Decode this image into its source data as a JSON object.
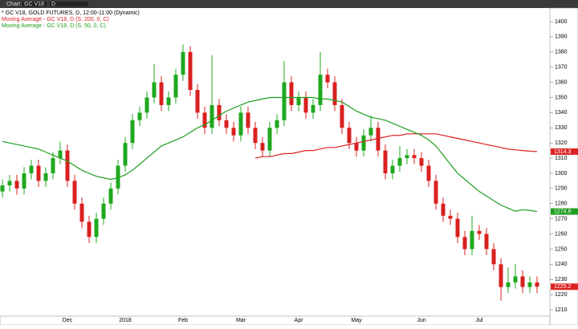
{
  "toolbar": {
    "items": [
      "Chart",
      "GC V18",
      "D"
    ]
  },
  "chart_data": {
    "type": "candlestick",
    "title": "* GC V18, GOLD FUTURES, D, 12:00-11:00 (Dynamic)",
    "categories": [
      null,
      null,
      null,
      null,
      null,
      null,
      null,
      null,
      null,
      "Dec",
      null,
      null,
      null,
      null,
      null,
      null,
      null,
      "2018",
      null,
      null,
      null,
      null,
      null,
      null,
      null,
      "Feb",
      null,
      null,
      null,
      null,
      null,
      null,
      null,
      "Mar",
      null,
      null,
      null,
      null,
      null,
      null,
      null,
      "Apr",
      null,
      null,
      null,
      null,
      null,
      null,
      null,
      "May",
      null,
      null,
      null,
      null,
      null,
      null,
      null,
      null,
      "Jun",
      null,
      null,
      null,
      null,
      null,
      null,
      null,
      "Jul",
      null,
      null,
      null,
      null,
      null,
      null,
      null,
      null
    ],
    "ohlc": [
      [
        1288,
        1296,
        1284,
        1292
      ],
      [
        1292,
        1299,
        1288,
        1295
      ],
      [
        1295,
        1299,
        1286,
        1290
      ],
      [
        1290,
        1304,
        1286,
        1300
      ],
      [
        1300,
        1309,
        1296,
        1305
      ],
      [
        1305,
        1309,
        1291,
        1295
      ],
      [
        1295,
        1304,
        1291,
        1300
      ],
      [
        1300,
        1314,
        1296,
        1310
      ],
      [
        1310,
        1321,
        1306,
        1315
      ],
      [
        1315,
        1319,
        1291,
        1295
      ],
      [
        1295,
        1299,
        1276,
        1280
      ],
      [
        1280,
        1284,
        1264,
        1268
      ],
      [
        1268,
        1272,
        1254,
        1258
      ],
      [
        1258,
        1274,
        1254,
        1270
      ],
      [
        1270,
        1284,
        1266,
        1280
      ],
      [
        1280,
        1294,
        1276,
        1290
      ],
      [
        1290,
        1309,
        1286,
        1305
      ],
      [
        1305,
        1324,
        1301,
        1320
      ],
      [
        1320,
        1339,
        1316,
        1335
      ],
      [
        1335,
        1344,
        1331,
        1340
      ],
      [
        1340,
        1354,
        1336,
        1350
      ],
      [
        1350,
        1372,
        1346,
        1360
      ],
      [
        1360,
        1364,
        1341,
        1345
      ],
      [
        1345,
        1354,
        1341,
        1350
      ],
      [
        1350,
        1369,
        1346,
        1365
      ],
      [
        1365,
        1385,
        1361,
        1380
      ],
      [
        1380,
        1384,
        1351,
        1355
      ],
      [
        1355,
        1359,
        1336,
        1340
      ],
      [
        1340,
        1344,
        1326,
        1330
      ],
      [
        1330,
        1378,
        1326,
        1345
      ],
      [
        1345,
        1349,
        1331,
        1335
      ],
      [
        1335,
        1339,
        1326,
        1330
      ],
      [
        1330,
        1334,
        1321,
        1325
      ],
      [
        1325,
        1344,
        1321,
        1340
      ],
      [
        1340,
        1344,
        1326,
        1330
      ],
      [
        1330,
        1334,
        1316,
        1320
      ],
      [
        1320,
        1324,
        1311,
        1315
      ],
      [
        1315,
        1334,
        1311,
        1330
      ],
      [
        1330,
        1339,
        1326,
        1335
      ],
      [
        1335,
        1374,
        1331,
        1360
      ],
      [
        1360,
        1364,
        1341,
        1345
      ],
      [
        1345,
        1354,
        1341,
        1350
      ],
      [
        1350,
        1354,
        1336,
        1340
      ],
      [
        1340,
        1349,
        1336,
        1345
      ],
      [
        1345,
        1380,
        1341,
        1365
      ],
      [
        1365,
        1369,
        1356,
        1360
      ],
      [
        1360,
        1364,
        1341,
        1345
      ],
      [
        1345,
        1349,
        1326,
        1330
      ],
      [
        1330,
        1334,
        1316,
        1320
      ],
      [
        1320,
        1324,
        1311,
        1315
      ],
      [
        1315,
        1329,
        1311,
        1325
      ],
      [
        1325,
        1338,
        1321,
        1330
      ],
      [
        1330,
        1334,
        1311,
        1315
      ],
      [
        1315,
        1319,
        1296,
        1300
      ],
      [
        1300,
        1309,
        1296,
        1305
      ],
      [
        1305,
        1318,
        1301,
        1310
      ],
      [
        1310,
        1316,
        1306,
        1312
      ],
      [
        1312,
        1316,
        1306,
        1310
      ],
      [
        1310,
        1314,
        1301,
        1305
      ],
      [
        1305,
        1309,
        1291,
        1295
      ],
      [
        1295,
        1299,
        1276,
        1280
      ],
      [
        1280,
        1284,
        1268,
        1272
      ],
      [
        1272,
        1276,
        1266,
        1270
      ],
      [
        1270,
        1274,
        1254,
        1258
      ],
      [
        1258,
        1262,
        1246,
        1250
      ],
      [
        1250,
        1272,
        1246,
        1262
      ],
      [
        1262,
        1266,
        1256,
        1260
      ],
      [
        1260,
        1264,
        1246,
        1250
      ],
      [
        1250,
        1254,
        1236,
        1240
      ],
      [
        1240,
        1244,
        1216,
        1225
      ],
      [
        1225,
        1238,
        1221,
        1228
      ],
      [
        1228,
        1240,
        1224,
        1232
      ],
      [
        1232,
        1236,
        1221,
        1225
      ],
      [
        1225,
        1232,
        1221,
        1228
      ],
      [
        1228,
        1232,
        1221,
        1225.2
      ]
    ],
    "up_color": "#1fa81f",
    "down_color": "#d92020",
    "series": [
      {
        "name": "Moving Average - GC V18, D (S, 200, 0, C)",
        "color": "#dd2222",
        "values": [
          null,
          null,
          null,
          null,
          null,
          null,
          null,
          null,
          null,
          null,
          null,
          null,
          null,
          null,
          null,
          null,
          null,
          null,
          null,
          null,
          null,
          null,
          null,
          null,
          null,
          null,
          null,
          null,
          null,
          null,
          null,
          null,
          null,
          null,
          null,
          1310,
          1311,
          1311,
          1312,
          1313,
          1313,
          1314,
          1315,
          1315,
          1316,
          1317,
          1317,
          1318,
          1319,
          1320,
          1321,
          1322,
          1323,
          1324,
          1325,
          1325,
          1326,
          1326,
          1326,
          1326,
          1326,
          1325,
          1324,
          1323,
          1322,
          1321,
          1320,
          1319,
          1318,
          1317,
          1316,
          1315.5,
          1315,
          1314.6,
          1314.3
        ]
      },
      {
        "name": "Moving Average - GC V18, D (S, 50, 0, C)",
        "color": "#1f9e1f",
        "values": [
          1321,
          1320,
          1319,
          1318,
          1317,
          1316,
          1314,
          1312,
          1310,
          1308,
          1305,
          1302,
          1300,
          1298,
          1297,
          1296,
          1297,
          1299,
          1302,
          1306,
          1310,
          1314,
          1318,
          1320,
          1322,
          1324,
          1327,
          1330,
          1332,
          1335,
          1338,
          1341,
          1343,
          1345,
          1347,
          1348,
          1349,
          1350,
          1350,
          1350,
          1350,
          1350,
          1350,
          1350,
          1349,
          1349,
          1348,
          1347,
          1344,
          1341,
          1339,
          1337,
          1336,
          1335,
          1333,
          1331,
          1329,
          1327,
          1325,
          1322,
          1318,
          1312,
          1306,
          1300,
          1296,
          1292,
          1288,
          1285,
          1282,
          1279,
          1277,
          1275,
          1276,
          1275.5,
          1274.8
        ]
      }
    ],
    "price_markers": [
      {
        "value": 1314.3,
        "label": "1314.3",
        "color": "#dd2222"
      },
      {
        "value": 1274.8,
        "label": "1274.8",
        "color": "#1f9e1f"
      },
      {
        "value": 1225.2,
        "label": "1225.2",
        "color": "#dd2222"
      }
    ],
    "ylim": [
      1206.3,
      1409
    ],
    "yticks": [
      1210,
      1220,
      1230,
      1240,
      1250,
      1260,
      1270,
      1280,
      1290,
      1300,
      1310,
      1320,
      1330,
      1340,
      1350,
      1360,
      1370,
      1380,
      1390,
      1400
    ],
    "grid": false
  }
}
